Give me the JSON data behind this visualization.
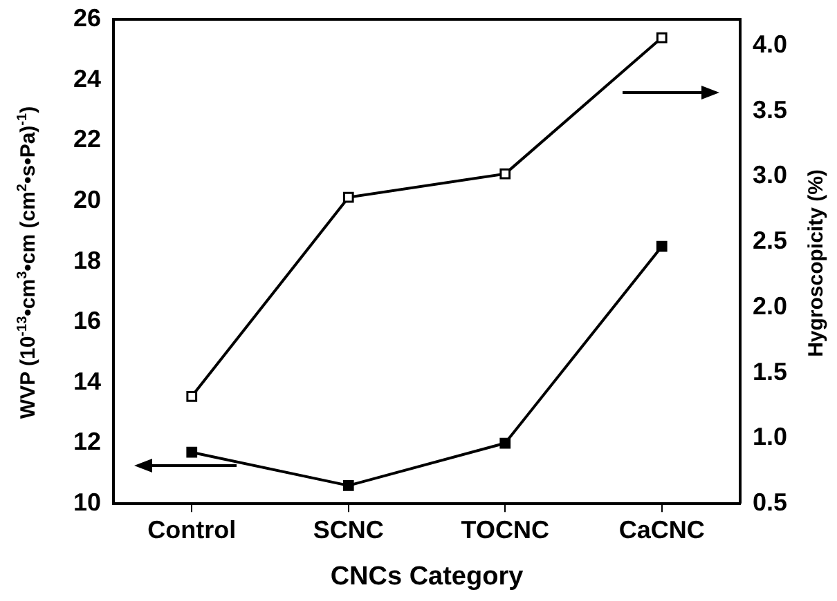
{
  "chart_data": {
    "type": "line",
    "xlabel": "CNCs Category",
    "ylabel": "WVP (10$^{-13}$•cm$^{3}$•cm (cm$^{2}$•s•Pa)$^{-1}$)",
    "y2label": "Hygroscopicity (%)",
    "categories": [
      "Control",
      "SCNC",
      "TOCNC",
      "CaCNC"
    ],
    "series": [
      {
        "color": "#000000",
        "values": [
          11.7,
          10.6,
          12.0,
          18.5
        ]
      },
      {
        "color": "#000000",
        "values": [
          1.32,
          2.84,
          3.02,
          4.06
        ],
        "axis": "y2"
      }
    ],
    "ylim": [
      10,
      26
    ],
    "yticks": [
      10,
      12,
      14,
      16,
      18,
      20,
      22,
      24,
      26
    ],
    "y2lim": [
      0.5,
      4.2
    ],
    "y2ticks": [
      {
        "value": 0.5,
        "label": "0.5"
      },
      {
        "value": 1,
        "label": "1.0"
      },
      {
        "value": 1.5,
        "label": "1.5"
      },
      {
        "value": 2,
        "label": "2.0"
      },
      {
        "value": 2.5,
        "label": "2.5"
      },
      {
        "value": 3,
        "label": "3.0"
      },
      {
        "value": 3.5,
        "label": "3.5"
      },
      {
        "value": 4,
        "label": "4.0"
      }
    ],
    "grid": false,
    "legend": false,
    "marker": "square",
    "line_style": "solid"
  }
}
